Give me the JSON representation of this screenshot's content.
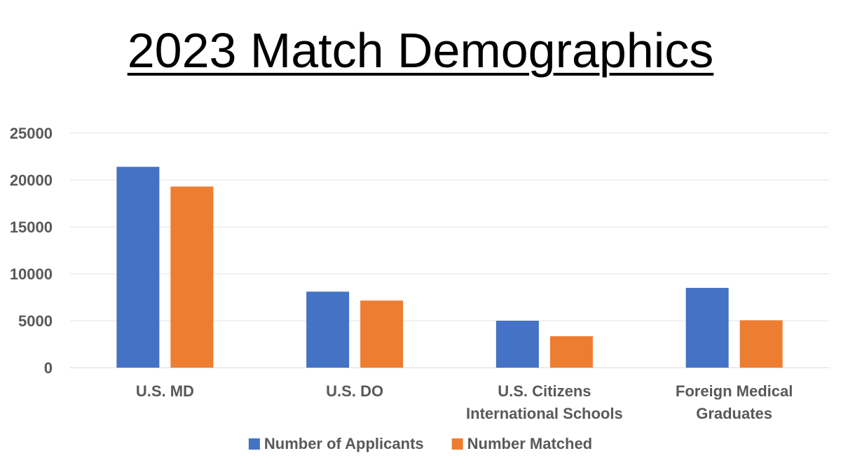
{
  "chart_data": {
    "type": "bar",
    "title": "2023 Match Demographics",
    "categories": [
      [
        "U.S. MD"
      ],
      [
        "U.S. DO"
      ],
      [
        "U.S. Citizens",
        "International Schools"
      ],
      [
        "Foreign Medical",
        "Graduates"
      ]
    ],
    "series": [
      {
        "name": "Number of Applicants",
        "color": "#4472C4",
        "values": [
          21400,
          8100,
          5000,
          8500
        ]
      },
      {
        "name": "Number Matched",
        "color": "#ED7D31",
        "values": [
          19300,
          7150,
          3350,
          5050
        ]
      }
    ],
    "ylim": [
      0,
      25000
    ],
    "yticks": [
      "0",
      "5000",
      "10000",
      "15000",
      "20000",
      "25000"
    ],
    "grid": true,
    "legend_position": "bottom"
  }
}
